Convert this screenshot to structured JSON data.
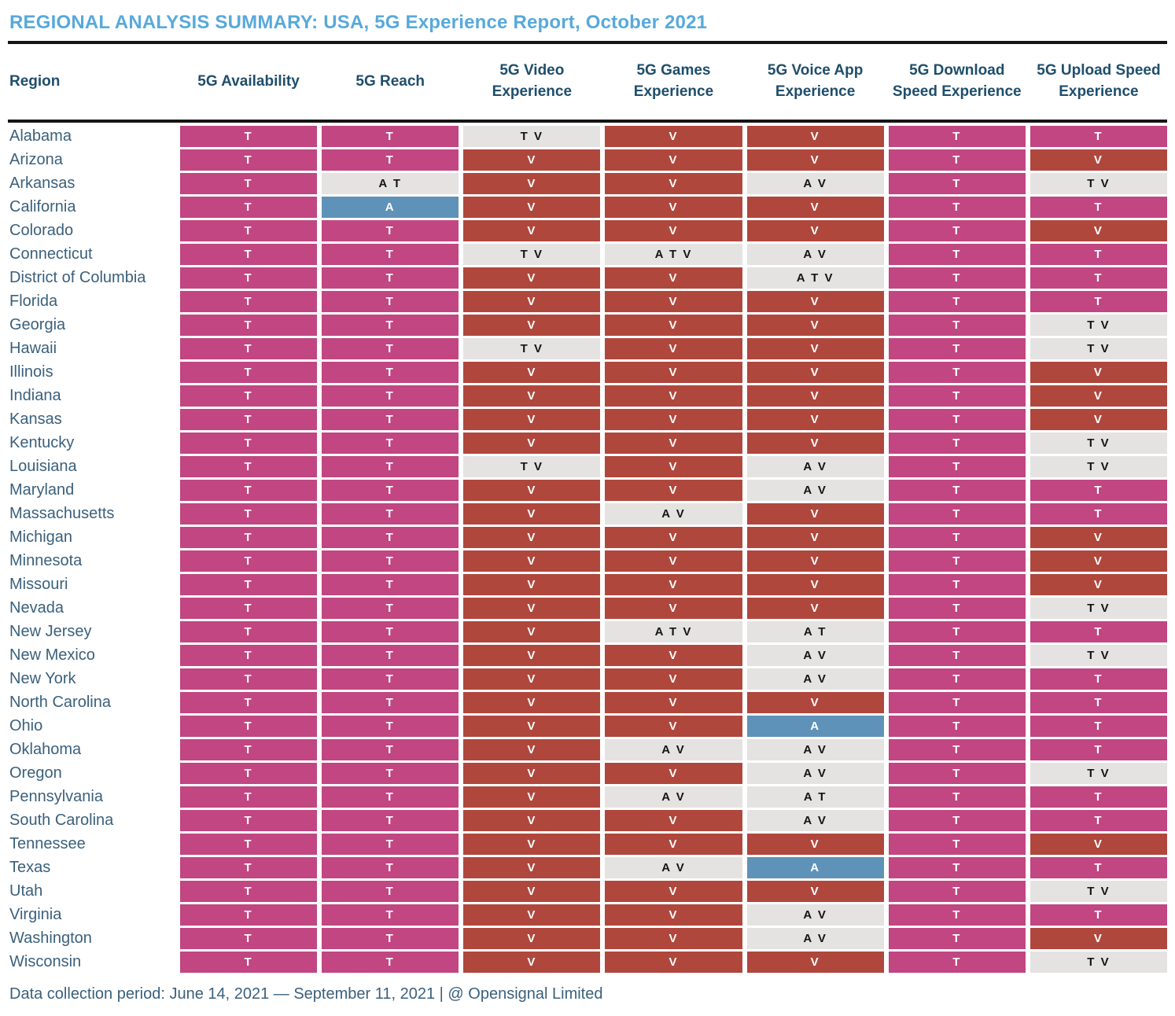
{
  "title": "REGIONAL ANALYSIS SUMMARY: USA, 5G Experience Report, October 2021",
  "footer": "Data collection period: June 14, 2021 — September 11, 2021 | @ Opensignal Limited",
  "colors": {
    "T": "#c14682",
    "V": "#b0473d",
    "A": "#5f92b8",
    "tie": "#e4e3e2",
    "tie_text": "#141414",
    "cell_text": "#ffffff",
    "title_text": "#57a9db",
    "header_text": "#1f4e6b",
    "region_text": "#3a607c"
  },
  "chart_data": {
    "type": "table",
    "title": "REGIONAL ANALYSis SUMMARY: USA, 5G Experience Report, October 2021",
    "columns": [
      "Region",
      "5G Availability",
      "5G Reach",
      "5G Video Experience",
      "5G Games Experience",
      "5G Voice App Experience",
      "5G Download Speed Experience",
      "5G Upload Speed Experience"
    ],
    "cell_color_rule": "single T = magenta, single V = dark red, single A = blue, multiple letters = light gray tie",
    "rows": [
      {
        "region": "Alabama",
        "cells": [
          "T",
          "T",
          "T V",
          "V",
          "V",
          "T",
          "T"
        ]
      },
      {
        "region": "Arizona",
        "cells": [
          "T",
          "T",
          "V",
          "V",
          "V",
          "T",
          "V"
        ]
      },
      {
        "region": "Arkansas",
        "cells": [
          "T",
          "A T",
          "V",
          "V",
          "A V",
          "T",
          "T V"
        ]
      },
      {
        "region": "California",
        "cells": [
          "T",
          "A",
          "V",
          "V",
          "V",
          "T",
          "T"
        ]
      },
      {
        "region": "Colorado",
        "cells": [
          "T",
          "T",
          "V",
          "V",
          "V",
          "T",
          "V"
        ]
      },
      {
        "region": "Connecticut",
        "cells": [
          "T",
          "T",
          "T V",
          "A T V",
          "A V",
          "T",
          "T"
        ]
      },
      {
        "region": "District of Columbia",
        "cells": [
          "T",
          "T",
          "V",
          "V",
          "A T V",
          "T",
          "T"
        ]
      },
      {
        "region": "Florida",
        "cells": [
          "T",
          "T",
          "V",
          "V",
          "V",
          "T",
          "T"
        ]
      },
      {
        "region": "Georgia",
        "cells": [
          "T",
          "T",
          "V",
          "V",
          "V",
          "T",
          "T V"
        ]
      },
      {
        "region": "Hawaii",
        "cells": [
          "T",
          "T",
          "T V",
          "V",
          "V",
          "T",
          "T V"
        ]
      },
      {
        "region": "Illinois",
        "cells": [
          "T",
          "T",
          "V",
          "V",
          "V",
          "T",
          "V"
        ]
      },
      {
        "region": "Indiana",
        "cells": [
          "T",
          "T",
          "V",
          "V",
          "V",
          "T",
          "V"
        ]
      },
      {
        "region": "Kansas",
        "cells": [
          "T",
          "T",
          "V",
          "V",
          "V",
          "T",
          "V"
        ]
      },
      {
        "region": "Kentucky",
        "cells": [
          "T",
          "T",
          "V",
          "V",
          "V",
          "T",
          "T V"
        ]
      },
      {
        "region": "Louisiana",
        "cells": [
          "T",
          "T",
          "T V",
          "V",
          "A V",
          "T",
          "T V"
        ]
      },
      {
        "region": "Maryland",
        "cells": [
          "T",
          "T",
          "V",
          "V",
          "A V",
          "T",
          "T"
        ]
      },
      {
        "region": "Massachusetts",
        "cells": [
          "T",
          "T",
          "V",
          "A V",
          "V",
          "T",
          "T"
        ]
      },
      {
        "region": "Michigan",
        "cells": [
          "T",
          "T",
          "V",
          "V",
          "V",
          "T",
          "V"
        ]
      },
      {
        "region": "Minnesota",
        "cells": [
          "T",
          "T",
          "V",
          "V",
          "V",
          "T",
          "V"
        ]
      },
      {
        "region": "Missouri",
        "cells": [
          "T",
          "T",
          "V",
          "V",
          "V",
          "T",
          "V"
        ]
      },
      {
        "region": "Nevada",
        "cells": [
          "T",
          "T",
          "V",
          "V",
          "V",
          "T",
          "T V"
        ]
      },
      {
        "region": "New Jersey",
        "cells": [
          "T",
          "T",
          "V",
          "A T V",
          "A T",
          "T",
          "T"
        ]
      },
      {
        "region": "New Mexico",
        "cells": [
          "T",
          "T",
          "V",
          "V",
          "A V",
          "T",
          "T V"
        ]
      },
      {
        "region": "New York",
        "cells": [
          "T",
          "T",
          "V",
          "V",
          "A V",
          "T",
          "T"
        ]
      },
      {
        "region": "North Carolina",
        "cells": [
          "T",
          "T",
          "V",
          "V",
          "V",
          "T",
          "T"
        ]
      },
      {
        "region": "Ohio",
        "cells": [
          "T",
          "T",
          "V",
          "V",
          "A",
          "T",
          "T"
        ]
      },
      {
        "region": "Oklahoma",
        "cells": [
          "T",
          "T",
          "V",
          "A V",
          "A V",
          "T",
          "T"
        ]
      },
      {
        "region": "Oregon",
        "cells": [
          "T",
          "T",
          "V",
          "V",
          "A V",
          "T",
          "T V"
        ]
      },
      {
        "region": "Pennsylvania",
        "cells": [
          "T",
          "T",
          "V",
          "A V",
          "A T",
          "T",
          "T"
        ]
      },
      {
        "region": "South Carolina",
        "cells": [
          "T",
          "T",
          "V",
          "V",
          "A V",
          "T",
          "T"
        ]
      },
      {
        "region": "Tennessee",
        "cells": [
          "T",
          "T",
          "V",
          "V",
          "V",
          "T",
          "V"
        ]
      },
      {
        "region": "Texas",
        "cells": [
          "T",
          "T",
          "V",
          "A V",
          "A",
          "T",
          "T"
        ]
      },
      {
        "region": "Utah",
        "cells": [
          "T",
          "T",
          "V",
          "V",
          "V",
          "T",
          "T V"
        ]
      },
      {
        "region": "Virginia",
        "cells": [
          "T",
          "T",
          "V",
          "V",
          "A V",
          "T",
          "T"
        ]
      },
      {
        "region": "Washington",
        "cells": [
          "T",
          "T",
          "V",
          "V",
          "A V",
          "T",
          "V"
        ]
      },
      {
        "region": "Wisconsin",
        "cells": [
          "T",
          "T",
          "V",
          "V",
          "V",
          "T",
          "T V"
        ]
      }
    ]
  }
}
